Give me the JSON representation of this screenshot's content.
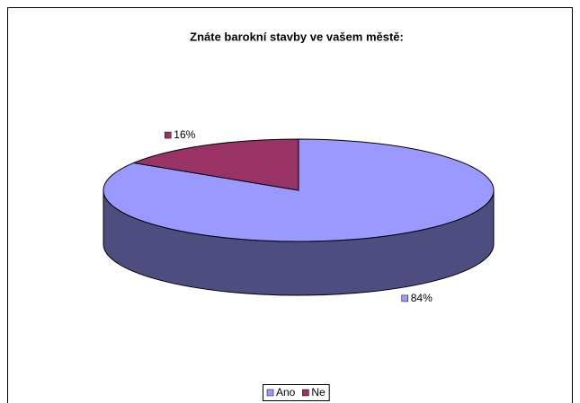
{
  "chart_data": {
    "type": "pie3d",
    "title": "Znáte barokní stavby ve vašem městě:",
    "categories": [
      "Ano",
      "Ne"
    ],
    "values": [
      84,
      16
    ],
    "value_labels": [
      "84%",
      "16%"
    ],
    "colors": [
      "#9999ff",
      "#993366"
    ],
    "legend": "bottom"
  }
}
